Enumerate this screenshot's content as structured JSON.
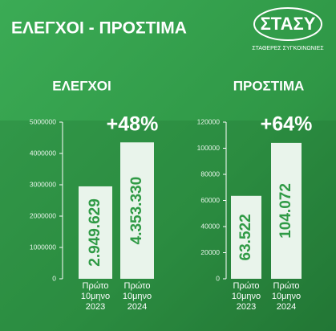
{
  "title": "ΕΛΕΓΧΟΙ - ΠΡΟΣΤΙΜΑ",
  "logo": {
    "mark": "ΣΤΑΣΥ",
    "text": "ΣΤΑΘΕΡΕΣ ΣΥΓΚΟΙΝΩΝΙΕΣ"
  },
  "chart_data": [
    {
      "type": "bar",
      "title": "ΕΛΕΓΧΟΙ",
      "annotation": "+48%",
      "categories": [
        [
          "Πρώτο",
          "10μηνο",
          "2023"
        ],
        [
          "Πρώτο",
          "10μηνο",
          "2024"
        ]
      ],
      "values": [
        2949629,
        4353330
      ],
      "value_labels": [
        "2.949.629",
        "4.353.330"
      ],
      "color": "#e9f4eb",
      "label_color": "#2f9a45",
      "ylim": [
        0,
        5000000
      ],
      "yticks": [
        0,
        1000000,
        2000000,
        3000000,
        4000000,
        5000000
      ]
    },
    {
      "type": "bar",
      "title": "ΠΡΟΣΤΙΜΑ",
      "annotation": "+64%",
      "categories": [
        [
          "Πρώτο",
          "10μηνο",
          "2023"
        ],
        [
          "Πρώτο",
          "10μηνο",
          "2024"
        ]
      ],
      "values": [
        63522,
        104072
      ],
      "value_labels": [
        "63.522",
        "104.072"
      ],
      "color": "#e9f4eb",
      "label_color": "#2f9a45",
      "ylim": [
        0,
        120000
      ],
      "yticks": [
        0,
        20000,
        40000,
        60000,
        80000,
        100000,
        120000
      ]
    }
  ]
}
